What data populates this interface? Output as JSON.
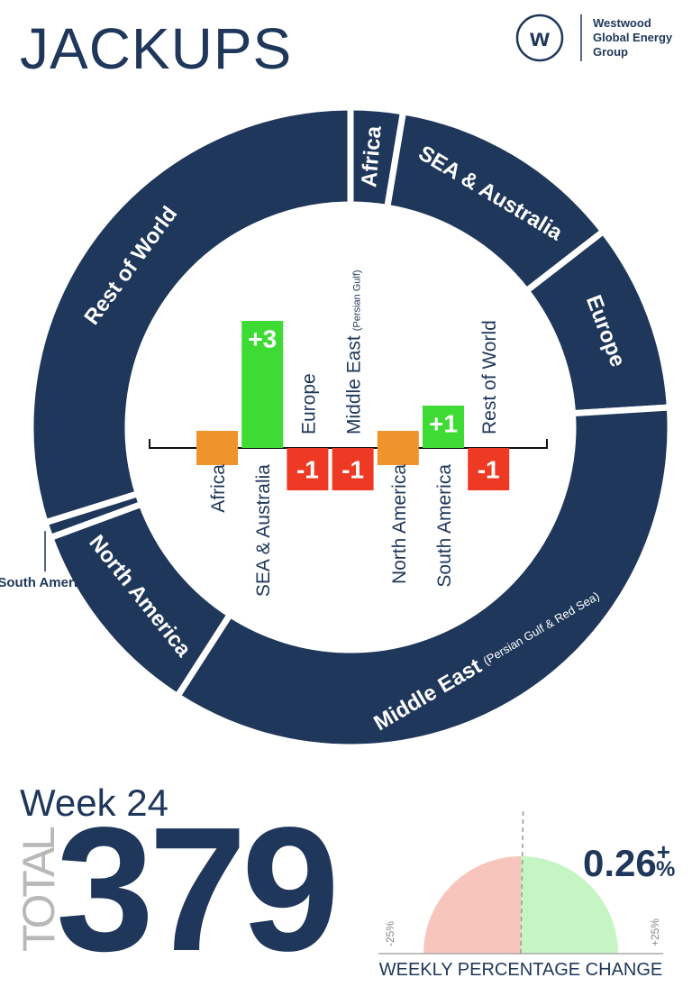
{
  "header": {
    "title": "JACKUPS",
    "logo_lines": [
      "Westwood",
      "Global Energy",
      "Group"
    ],
    "logo_mark": "w"
  },
  "chart_data": [
    {
      "type": "donut",
      "categories": [
        "Africa",
        "SEA & Australia",
        "Europe",
        "Middle East",
        "North America",
        "South America",
        "Rest of World"
      ],
      "category_notes": {
        "3": "(Persian Gulf & Red Sea)"
      },
      "values": [
        10,
        45,
        36,
        133,
        39,
        3,
        113
      ],
      "color": "#1e375a"
    },
    {
      "type": "bar",
      "categories": [
        "Africa",
        "SEA & Australia",
        "Europe",
        "Middle East",
        "North America",
        "South America",
        "Rest of World"
      ],
      "category_notes": {
        "3": "(Persian Gulf)"
      },
      "values": [
        0,
        3,
        -1,
        -1,
        0,
        1,
        -1
      ],
      "value_labels": [
        null,
        "+3",
        "-1",
        "-1",
        null,
        "+1",
        "-1"
      ],
      "colors": {
        "positive": "#3ddb34",
        "negative": "#ee3a24",
        "zero": "#ef932c"
      }
    },
    {
      "type": "gauge",
      "value": 0.26,
      "value_label": "0.26",
      "sign": "+",
      "unit": "%",
      "xlim": [
        -25,
        25
      ],
      "xticks": [
        {
          "value": -25,
          "label": "-25%"
        },
        {
          "value": 25,
          "label": "+25%"
        }
      ],
      "xlabel": "WEEKLY PERCENTAGE CHANGE",
      "colors": {
        "negative": "#f8c5bd",
        "positive": "#c6f5c4"
      }
    }
  ],
  "summary": {
    "week": "Week 24",
    "total_label": "TOTAL",
    "total": 379
  }
}
